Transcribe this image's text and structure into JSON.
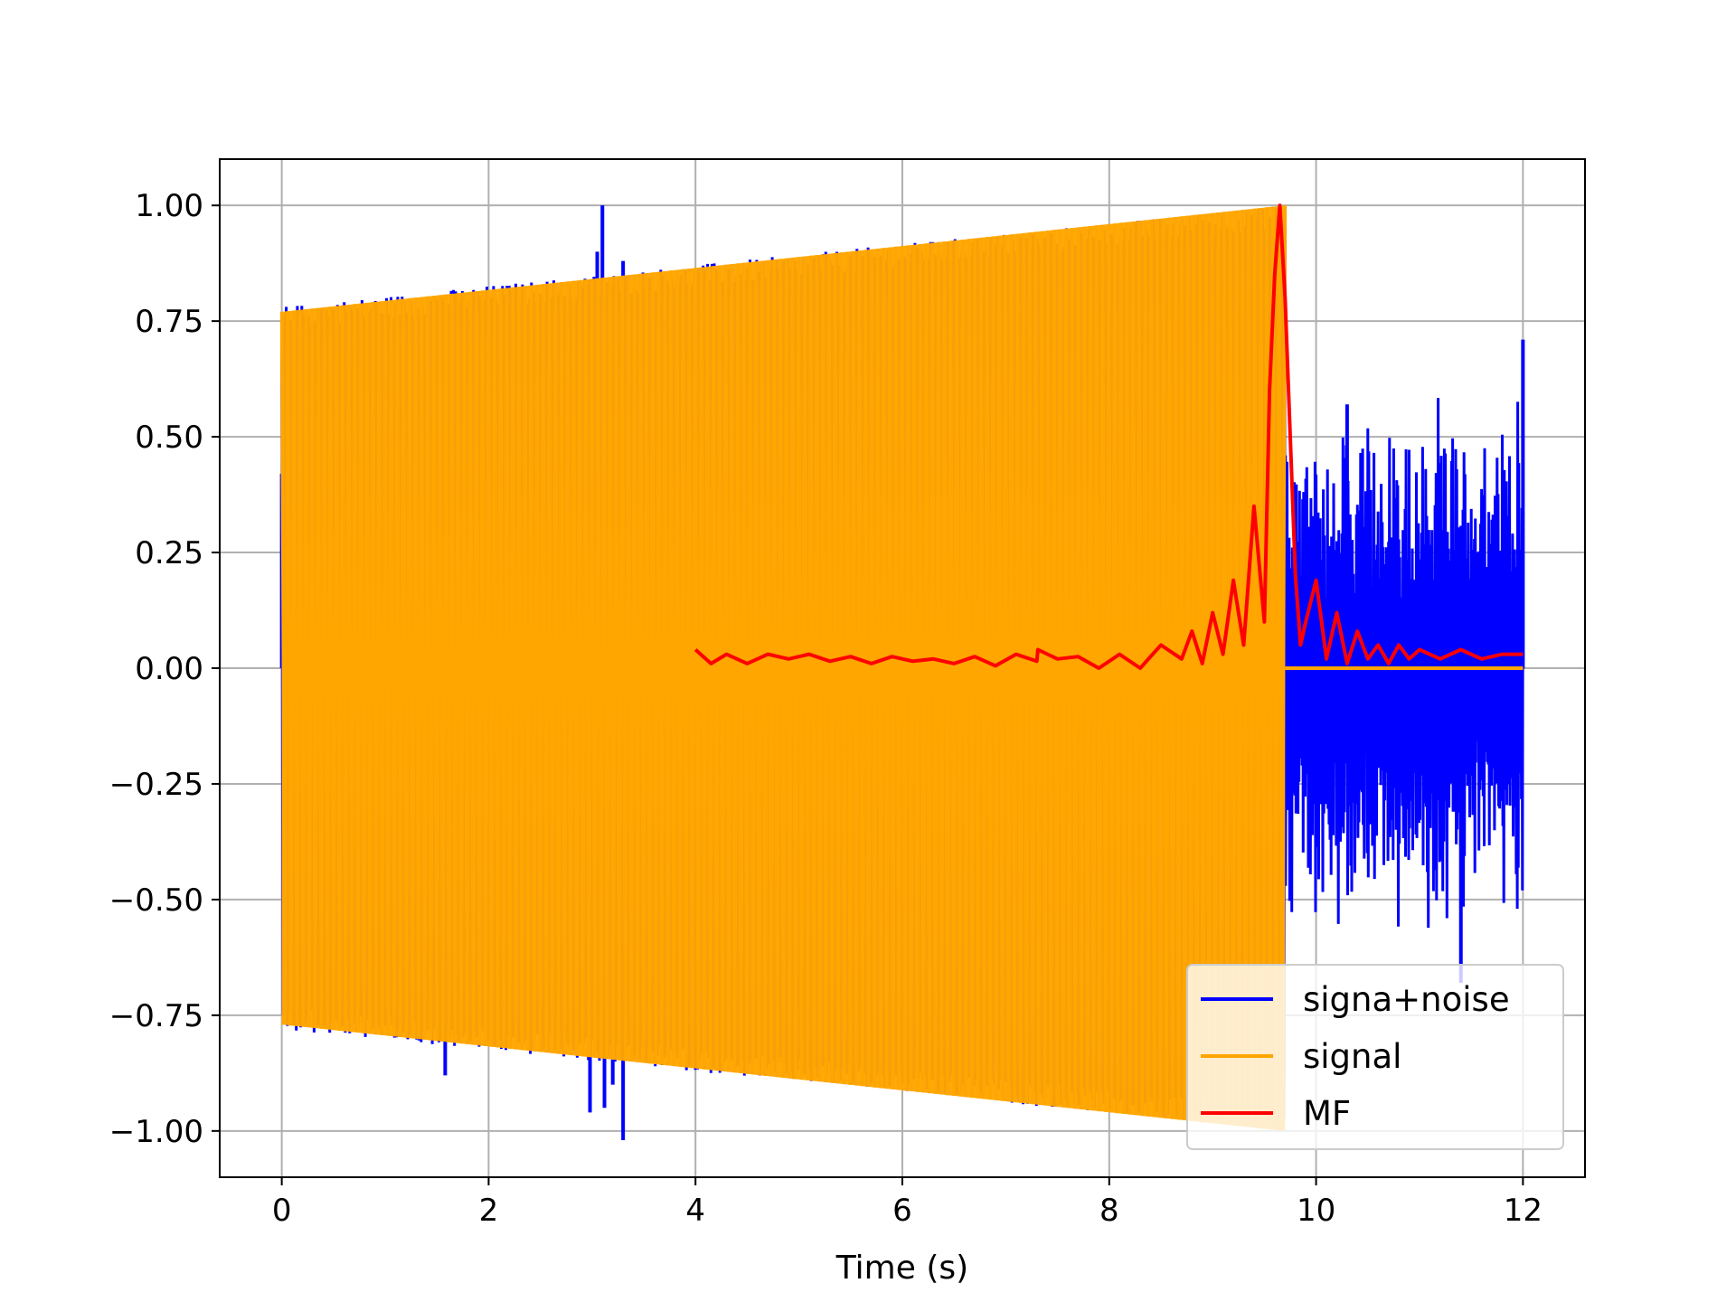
{
  "chart_data": {
    "type": "line",
    "title": "",
    "xlabel": "Time (s)",
    "ylabel": "",
    "xlim": [
      -0.6,
      12.6
    ],
    "ylim": [
      -1.1,
      1.1
    ],
    "xticks": [
      0,
      2,
      4,
      6,
      8,
      10,
      12
    ],
    "xtick_labels": [
      "0",
      "2",
      "4",
      "6",
      "8",
      "10",
      "12"
    ],
    "yticks": [
      1.0,
      0.75,
      0.5,
      0.25,
      0.0,
      -0.25,
      -0.5,
      -0.75,
      -1.0
    ],
    "ytick_labels": [
      "1.00",
      "0.75",
      "0.50",
      "0.25",
      "0.00",
      "−0.25",
      "−0.50",
      "−0.75",
      "−1.00"
    ],
    "grid": true,
    "legend_position": "lower-right",
    "series": [
      {
        "name": "signa+noise",
        "color": "#0000ff",
        "description_points": {
          "x": [
            0,
            1.58,
            3.0,
            3.1,
            3.3,
            9.7,
            10.3,
            11.4,
            12.0
          ],
          "y": [
            0.42,
            -0.88,
            0.84,
            1.0,
            -1.02,
            0.46,
            0.57,
            -0.68,
            0.71
          ]
        }
      },
      {
        "name": "signal",
        "color": "#ffa500",
        "envelope": {
          "x": [
            0,
            9.7
          ],
          "upper": [
            0.77,
            1.0
          ],
          "lower": [
            -0.77,
            -1.0
          ]
        },
        "tail": {
          "x": [
            9.7,
            12.0
          ],
          "y": [
            0,
            0
          ]
        }
      },
      {
        "name": "MF",
        "color": "#ff0000",
        "x": [
          4.0,
          4.05,
          4.15,
          4.3,
          4.5,
          4.7,
          4.9,
          5.1,
          5.3,
          5.5,
          5.7,
          5.9,
          6.1,
          6.3,
          6.5,
          6.7,
          6.9,
          7.1,
          7.3,
          7.31,
          7.5,
          7.7,
          7.9,
          8.1,
          8.3,
          8.5,
          8.7,
          8.8,
          8.9,
          9.0,
          9.1,
          9.2,
          9.3,
          9.4,
          9.5,
          9.55,
          9.6,
          9.65,
          9.7,
          9.75,
          9.8,
          9.85,
          9.9,
          10.0,
          10.1,
          10.2,
          10.3,
          10.4,
          10.5,
          10.6,
          10.7,
          10.8,
          10.9,
          11.0,
          11.2,
          11.4,
          11.6,
          11.8,
          12.0
        ],
        "y": [
          0.04,
          0.03,
          0.01,
          0.03,
          0.01,
          0.03,
          0.02,
          0.03,
          0.015,
          0.025,
          0.01,
          0.025,
          0.015,
          0.02,
          0.01,
          0.025,
          0.005,
          0.03,
          0.015,
          0.04,
          0.02,
          0.025,
          0.0,
          0.03,
          0.0,
          0.05,
          0.02,
          0.08,
          0.01,
          0.12,
          0.03,
          0.19,
          0.05,
          0.35,
          0.1,
          0.6,
          0.85,
          1.0,
          0.8,
          0.5,
          0.2,
          0.05,
          0.1,
          0.19,
          0.02,
          0.12,
          0.01,
          0.08,
          0.02,
          0.05,
          0.01,
          0.05,
          0.02,
          0.04,
          0.02,
          0.04,
          0.02,
          0.03,
          0.03
        ]
      }
    ]
  }
}
